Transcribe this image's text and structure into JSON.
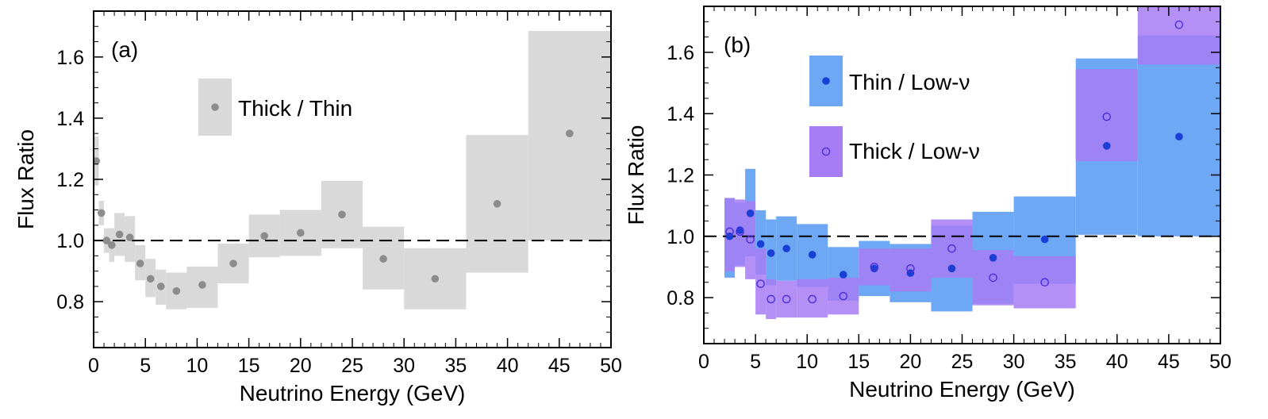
{
  "chart_data": [
    {
      "type": "scatter",
      "panel_label": "(a)",
      "xlabel": "Neutrino Energy (GeV)",
      "ylabel": "Flux Ratio",
      "xlim": [
        0,
        50
      ],
      "ylim": [
        0.65,
        1.75
      ],
      "xticks": [
        "0",
        "5",
        "10",
        "15",
        "20",
        "25",
        "30",
        "35",
        "40",
        "45",
        "50"
      ],
      "yticks": [
        "0.8",
        "1.0",
        "1.2",
        "1.4",
        "1.6"
      ],
      "reference_line": 1.0,
      "legend_position": "top-center",
      "series": [
        {
          "name": "Thick / Thin",
          "marker": "filled-circle",
          "color": "#8c8c8c",
          "band_color": "#d9d9d9",
          "points": [
            {
              "x": 0.25,
              "y": 1.26,
              "lo": 1.18,
              "hi": 1.34,
              "x0": 0,
              "x1": 0.5
            },
            {
              "x": 0.75,
              "y": 1.09,
              "lo": 1.05,
              "hi": 1.13,
              "x0": 0.5,
              "x1": 1.0
            },
            {
              "x": 1.25,
              "y": 1.0,
              "lo": 0.96,
              "hi": 1.04,
              "x0": 1.0,
              "x1": 1.5
            },
            {
              "x": 1.75,
              "y": 0.985,
              "lo": 0.93,
              "hi": 1.04,
              "x0": 1.5,
              "x1": 2.0
            },
            {
              "x": 2.5,
              "y": 1.02,
              "lo": 0.95,
              "hi": 1.09,
              "x0": 2.0,
              "x1": 3.0
            },
            {
              "x": 3.5,
              "y": 1.01,
              "lo": 0.93,
              "hi": 1.08,
              "x0": 3.0,
              "x1": 4.0
            },
            {
              "x": 4.5,
              "y": 0.925,
              "lo": 0.87,
              "hi": 0.985,
              "x0": 4.0,
              "x1": 5.0
            },
            {
              "x": 5.5,
              "y": 0.875,
              "lo": 0.815,
              "hi": 0.94,
              "x0": 5.0,
              "x1": 6.0
            },
            {
              "x": 6.5,
              "y": 0.85,
              "lo": 0.79,
              "hi": 0.905,
              "x0": 6.0,
              "x1": 7.0
            },
            {
              "x": 8.0,
              "y": 0.835,
              "lo": 0.775,
              "hi": 0.895,
              "x0": 7.0,
              "x1": 9.0
            },
            {
              "x": 10.5,
              "y": 0.855,
              "lo": 0.78,
              "hi": 0.915,
              "x0": 9.0,
              "x1": 12.0
            },
            {
              "x": 13.5,
              "y": 0.925,
              "lo": 0.86,
              "hi": 0.99,
              "x0": 12.0,
              "x1": 15.0
            },
            {
              "x": 16.5,
              "y": 1.015,
              "lo": 0.945,
              "hi": 1.085,
              "x0": 15.0,
              "x1": 18.0
            },
            {
              "x": 20.0,
              "y": 1.025,
              "lo": 0.95,
              "hi": 1.1,
              "x0": 18.0,
              "x1": 22.0
            },
            {
              "x": 24.0,
              "y": 1.085,
              "lo": 0.975,
              "hi": 1.195,
              "x0": 22.0,
              "x1": 26.0
            },
            {
              "x": 28.0,
              "y": 0.94,
              "lo": 0.84,
              "hi": 1.045,
              "x0": 26.0,
              "x1": 30.0
            },
            {
              "x": 33.0,
              "y": 0.875,
              "lo": 0.775,
              "hi": 0.975,
              "x0": 30.0,
              "x1": 36.0
            },
            {
              "x": 39.0,
              "y": 1.12,
              "lo": 0.895,
              "hi": 1.345,
              "x0": 36.0,
              "x1": 42.0
            },
            {
              "x": 46.0,
              "y": 1.35,
              "lo": 1.0,
              "hi": 1.685,
              "x0": 42.0,
              "x1": 50.0
            }
          ]
        }
      ]
    },
    {
      "type": "scatter",
      "panel_label": "(b)",
      "xlabel": "Neutrino Energy (GeV)",
      "ylabel": "Flux Ratio",
      "xlim": [
        0,
        50
      ],
      "ylim": [
        0.65,
        1.75
      ],
      "xticks": [
        "0",
        "5",
        "10",
        "15",
        "20",
        "25",
        "30",
        "35",
        "40",
        "45",
        "50"
      ],
      "yticks": [
        "0.8",
        "1.0",
        "1.2",
        "1.4",
        "1.6"
      ],
      "reference_line": 1.0,
      "legend_position": "top-left",
      "series": [
        {
          "name": "Thin / Low-ν",
          "marker": "filled-circle",
          "color": "#1a3fd6",
          "band_color": "#6ea8f5",
          "points": [
            {
              "x": 2.5,
              "y": 1.0,
              "lo": 0.865,
              "hi": 1.125,
              "x0": 2.0,
              "x1": 3.0
            },
            {
              "x": 3.5,
              "y": 1.02,
              "lo": 0.905,
              "hi": 1.11,
              "x0": 3.0,
              "x1": 4.0
            },
            {
              "x": 4.5,
              "y": 1.075,
              "lo": 0.935,
              "hi": 1.22,
              "x0": 4.0,
              "x1": 5.0
            },
            {
              "x": 5.5,
              "y": 0.975,
              "lo": 0.875,
              "hi": 1.085,
              "x0": 5.0,
              "x1": 6.0
            },
            {
              "x": 6.5,
              "y": 0.945,
              "lo": 0.84,
              "hi": 1.055,
              "x0": 6.0,
              "x1": 7.0
            },
            {
              "x": 8.0,
              "y": 0.96,
              "lo": 0.855,
              "hi": 1.065,
              "x0": 7.0,
              "x1": 9.0
            },
            {
              "x": 10.5,
              "y": 0.94,
              "lo": 0.835,
              "hi": 1.04,
              "x0": 9.0,
              "x1": 12.0
            },
            {
              "x": 13.5,
              "y": 0.875,
              "lo": 0.79,
              "hi": 0.965,
              "x0": 12.0,
              "x1": 15.0
            },
            {
              "x": 16.5,
              "y": 0.895,
              "lo": 0.805,
              "hi": 0.985,
              "x0": 15.0,
              "x1": 18.0
            },
            {
              "x": 20.0,
              "y": 0.88,
              "lo": 0.785,
              "hi": 0.975,
              "x0": 18.0,
              "x1": 22.0
            },
            {
              "x": 24.0,
              "y": 0.895,
              "lo": 0.755,
              "hi": 1.035,
              "x0": 22.0,
              "x1": 26.0
            },
            {
              "x": 28.0,
              "y": 0.93,
              "lo": 0.78,
              "hi": 1.08,
              "x0": 26.0,
              "x1": 30.0
            },
            {
              "x": 33.0,
              "y": 0.99,
              "lo": 0.845,
              "hi": 1.13,
              "x0": 30.0,
              "x1": 36.0
            },
            {
              "x": 39.0,
              "y": 1.295,
              "lo": 1.005,
              "hi": 1.58,
              "x0": 36.0,
              "x1": 42.0
            },
            {
              "x": 46.0,
              "y": 1.325,
              "lo": 1.0,
              "hi": 1.655,
              "x0": 42.0,
              "x1": 50.0
            }
          ]
        },
        {
          "name": "Thick / Low-ν",
          "marker": "open-circle",
          "color": "#4a2fd8",
          "band_color": "#a77df5",
          "points": [
            {
              "x": 2.5,
              "y": 1.015,
              "lo": 0.885,
              "hi": 1.125,
              "x0": 2.0,
              "x1": 3.0
            },
            {
              "x": 3.5,
              "y": 1.015,
              "lo": 0.9,
              "hi": 1.12,
              "x0": 3.0,
              "x1": 4.0
            },
            {
              "x": 4.5,
              "y": 0.99,
              "lo": 0.86,
              "hi": 1.115,
              "x0": 4.0,
              "x1": 5.0
            },
            {
              "x": 5.5,
              "y": 0.845,
              "lo": 0.745,
              "hi": 0.96,
              "x0": 5.0,
              "x1": 6.0
            },
            {
              "x": 6.5,
              "y": 0.795,
              "lo": 0.73,
              "hi": 0.86,
              "x0": 6.0,
              "x1": 7.0
            },
            {
              "x": 8.0,
              "y": 0.795,
              "lo": 0.735,
              "hi": 0.855,
              "x0": 7.0,
              "x1": 9.0
            },
            {
              "x": 10.5,
              "y": 0.795,
              "lo": 0.735,
              "hi": 0.86,
              "x0": 9.0,
              "x1": 12.0
            },
            {
              "x": 13.5,
              "y": 0.805,
              "lo": 0.745,
              "hi": 0.865,
              "x0": 12.0,
              "x1": 15.0
            },
            {
              "x": 16.5,
              "y": 0.9,
              "lo": 0.84,
              "hi": 0.96,
              "x0": 15.0,
              "x1": 18.0
            },
            {
              "x": 20.0,
              "y": 0.895,
              "lo": 0.82,
              "hi": 0.96,
              "x0": 18.0,
              "x1": 22.0
            },
            {
              "x": 24.0,
              "y": 0.96,
              "lo": 0.865,
              "hi": 1.055,
              "x0": 22.0,
              "x1": 26.0
            },
            {
              "x": 28.0,
              "y": 0.865,
              "lo": 0.775,
              "hi": 0.955,
              "x0": 26.0,
              "x1": 30.0
            },
            {
              "x": 33.0,
              "y": 0.85,
              "lo": 0.765,
              "hi": 0.935,
              "x0": 30.0,
              "x1": 36.0
            },
            {
              "x": 39.0,
              "y": 1.39,
              "lo": 1.245,
              "hi": 1.545,
              "x0": 36.0,
              "x1": 42.0
            },
            {
              "x": 46.0,
              "y": 1.69,
              "lo": 1.56,
              "hi": 1.78,
              "x0": 42.0,
              "x1": 50.0
            }
          ]
        }
      ]
    }
  ]
}
